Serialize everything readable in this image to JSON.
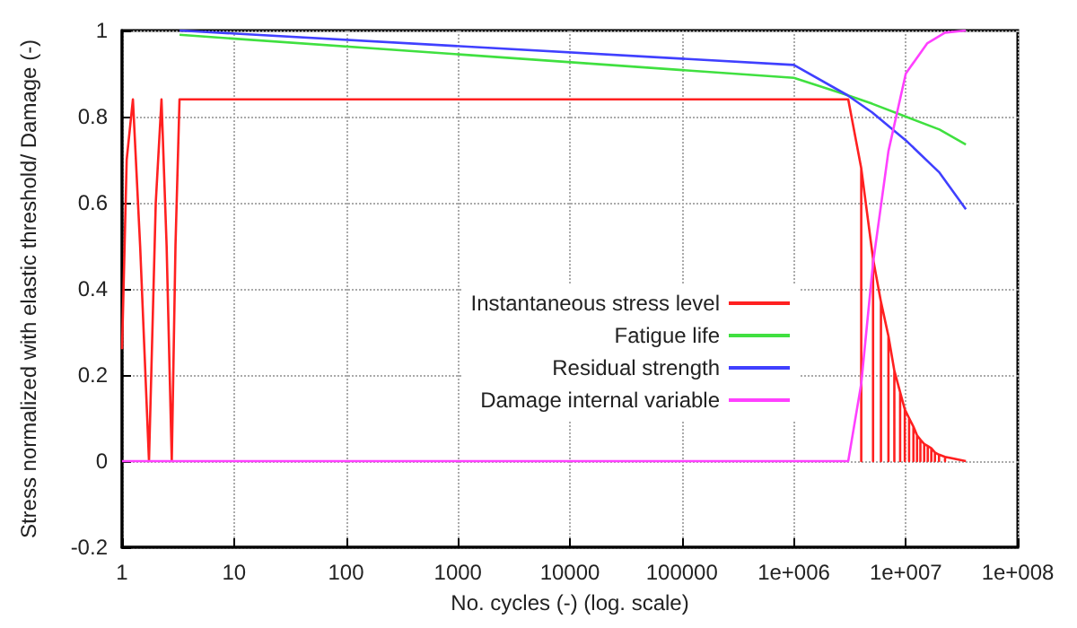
{
  "chart_data": {
    "type": "line",
    "xlabel": "No. cycles (-) (log. scale)",
    "ylabel": "Stress normalized with elastic threshold/ Damage (-)",
    "log": "x",
    "xlim": [
      1,
      100000000
    ],
    "ylim": [
      -0.2,
      1
    ],
    "xticks": [
      1,
      10,
      100,
      1000,
      10000,
      100000,
      {
        "value": 1000000,
        "label": "1e+006"
      },
      {
        "value": 10000000,
        "label": "1e+007"
      },
      {
        "value": 100000000,
        "label": "1e+008"
      }
    ],
    "yticks": [
      -0.2,
      0,
      0.2,
      0.4,
      0.6,
      0.8,
      1
    ],
    "grid": true,
    "legend": "right",
    "marker": "none",
    "line_style": "solid",
    "series": [
      {
        "name": "Instantaneous stress level",
        "color": "#ff2020",
        "x": [
          1,
          1.1,
          1.25,
          1.45,
          1.74,
          2.0,
          2.25,
          2.5,
          2.78,
          3.0,
          3.26,
          3060000,
          4000000,
          4000000,
          4000000,
          5100000,
          5100000,
          5100000,
          6000000,
          6000000,
          6000000,
          7000000,
          7000000,
          7000000,
          7900000,
          7900000,
          7900000,
          8900000,
          8900000,
          8900000,
          9800000,
          9800000,
          9800000,
          10700000,
          10700000,
          10700000,
          11700000,
          11700000,
          11700000,
          12600000,
          12600000,
          12600000,
          13500000,
          13500000,
          13500000,
          14600000,
          14600000,
          14600000,
          15700000,
          15700000,
          15700000,
          16900000,
          16900000,
          16900000,
          18200000,
          18200000,
          18200000,
          19800000,
          19800000,
          19800000,
          22400000,
          22400000,
          22400000,
          34400000
        ],
        "values": [
          0.26,
          0.7,
          0.84,
          0.5,
          0,
          0.6,
          0.84,
          0.5,
          0,
          0.5,
          0.84,
          0.84,
          0.68,
          0,
          0.68,
          0.47,
          0,
          0.47,
          0.37,
          0,
          0.37,
          0.29,
          0,
          0.29,
          0.21,
          0,
          0.21,
          0.16,
          0,
          0.16,
          0.12,
          0,
          0.12,
          0.1,
          0,
          0.1,
          0.08,
          0,
          0.08,
          0.06,
          0,
          0.06,
          0.05,
          0,
          0.05,
          0.04,
          0,
          0.04,
          0.035,
          0,
          0.035,
          0.03,
          0,
          0.03,
          0.02,
          0,
          0.02,
          0.015,
          0,
          0.015,
          0.01,
          0,
          0.01,
          0
        ]
      },
      {
        "name": "Fatigue life",
        "color": "#40e040",
        "x": [
          3.26,
          1000000,
          3000000,
          5000000,
          10000000,
          20000000,
          34400000
        ],
        "values": [
          0.99,
          0.89,
          0.85,
          0.83,
          0.8,
          0.77,
          0.735
        ]
      },
      {
        "name": "Residual strength",
        "color": "#4040ff",
        "x": [
          3.26,
          1000000,
          3000000,
          5000000,
          10000000,
          20000000,
          34400000
        ],
        "values": [
          1,
          0.92,
          0.85,
          0.81,
          0.745,
          0.67,
          0.585
        ]
      },
      {
        "name": "Damage internal variable",
        "color": "#ff40ff",
        "x": [
          1,
          3060000,
          4000000,
          5100000,
          7000000,
          10000000,
          15500000,
          22400000,
          34400000
        ],
        "values": [
          0,
          0,
          0.18,
          0.46,
          0.72,
          0.9,
          0.97,
          0.995,
          1
        ]
      }
    ]
  }
}
